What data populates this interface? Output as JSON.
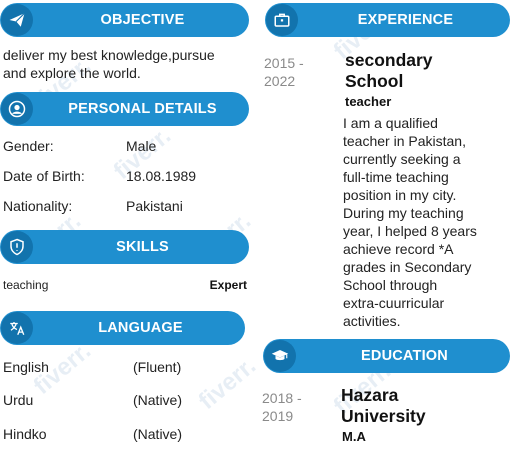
{
  "objective": {
    "title": "OBJECTIVE",
    "icon": "paper-plane-icon",
    "text_line1": "deliver my best knowledge,pursue",
    "text_line2": "and explore the world."
  },
  "personal": {
    "title": "PERSONAL DETAILS",
    "icon": "user-icon",
    "rows": [
      {
        "label": "Gender:",
        "value": "Male"
      },
      {
        "label": "Date of Birth:",
        "value": "18.08.1989"
      },
      {
        "label": "Nationality:",
        "value": "Pakistani"
      }
    ]
  },
  "skills": {
    "title": "SKILLS",
    "icon": "shield-icon",
    "items": [
      {
        "name": "teaching",
        "level": "Expert"
      }
    ]
  },
  "language": {
    "title": "LANGUAGE",
    "icon": "translate-icon",
    "items": [
      {
        "name": "English",
        "level": "(Fluent)"
      },
      {
        "name": "Urdu",
        "level": "(Native)"
      },
      {
        "name": "Hindko",
        "level": "(Native)"
      }
    ]
  },
  "experience": {
    "title": "EXPERIENCE",
    "icon": "briefcase-icon",
    "year_line1": "2015 -",
    "year_line2": "2022",
    "org_line1": "secondary",
    "org_line2": "School",
    "role": "teacher",
    "desc_lines": [
      "I am a qualified",
      "teacher in Pakistan,",
      "currently seeking a",
      "full-time teaching",
      "position in my city.",
      "During my teaching",
      "year, I helped 8 years",
      "achieve record *A",
      "grades in Secondary",
      "School through",
      "extra-cuurricular",
      "activities."
    ]
  },
  "education": {
    "title": "EDUCATION",
    "icon": "graduation-cap-icon",
    "year_line1": "2018 -",
    "year_line2": "2019",
    "org_line1": "Hazara",
    "org_line2": "University",
    "degree": "M.A"
  },
  "watermark": "fiverr.",
  "colors": {
    "header_bg": "#1f8fcf",
    "icon_bg": "#1273ad",
    "year": "#8a8a8a"
  }
}
